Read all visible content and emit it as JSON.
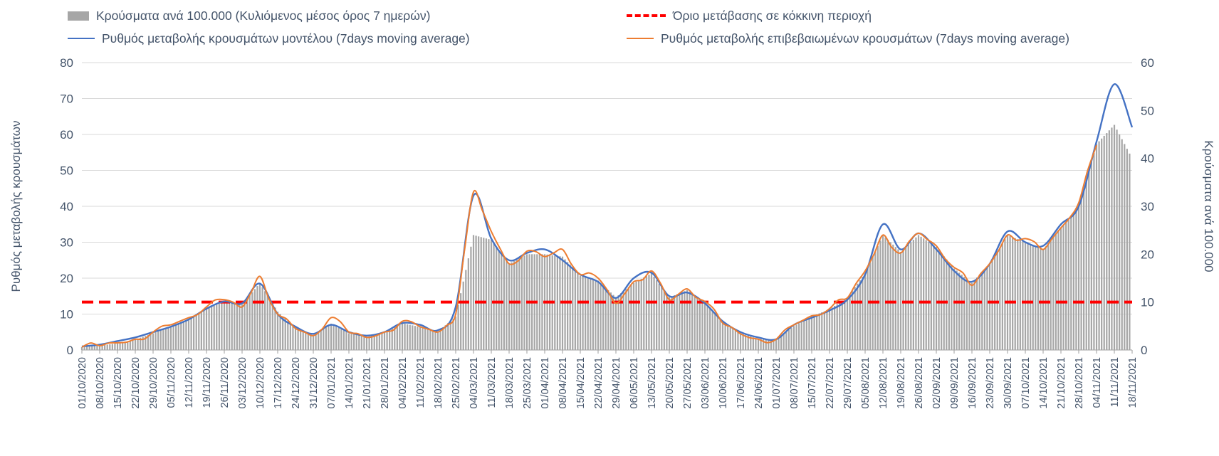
{
  "chart_data": {
    "type": "bar",
    "x_labels": [
      "01/10/2020",
      "08/10/2020",
      "15/10/2020",
      "22/10/2020",
      "29/10/2020",
      "05/11/2020",
      "12/11/2020",
      "19/11/2020",
      "26/11/2020",
      "03/12/2020",
      "10/12/2020",
      "17/12/2020",
      "24/12/2020",
      "31/12/2020",
      "07/01/2021",
      "14/01/2021",
      "21/01/2021",
      "28/01/2021",
      "04/02/2021",
      "11/02/2021",
      "18/02/2021",
      "25/02/2021",
      "04/03/2021",
      "11/03/2021",
      "18/03/2021",
      "25/03/2021",
      "01/04/2021",
      "08/04/2021",
      "15/04/2021",
      "22/04/2021",
      "29/04/2021",
      "06/05/2021",
      "13/05/2021",
      "20/05/2021",
      "27/05/2021",
      "03/06/2021",
      "10/06/2021",
      "17/06/2021",
      "24/06/2021",
      "01/07/2021",
      "08/07/2021",
      "15/07/2021",
      "22/07/2021",
      "29/07/2021",
      "05/08/2021",
      "12/08/2021",
      "19/08/2021",
      "26/08/2021",
      "02/09/2021",
      "09/09/2021",
      "16/09/2021",
      "23/09/2021",
      "30/09/2021",
      "07/10/2021",
      "14/10/2021",
      "21/10/2021",
      "28/10/2021",
      "04/11/2021",
      "11/11/2021",
      "18/11/2021"
    ],
    "left_axis": {
      "title": "Ρυθμός μεταβολής κρουσμάτων",
      "min": 0,
      "max": 80,
      "step": 10
    },
    "right_axis": {
      "title": "Κρούσματα ανά 100.000",
      "min": 0,
      "max": 60,
      "step": 10
    },
    "series": [
      {
        "name": "Κρούσματα ανά 100.000 (Κυλιόμενος μέσος όρος 7 ημερών)",
        "type": "bar",
        "axis": "right",
        "color": "#a6a6a6",
        "values": [
          0.6,
          0.9,
          1.4,
          2.2,
          3.5,
          5,
          6.5,
          8.7,
          10,
          9.5,
          14,
          8,
          4.5,
          3,
          5.5,
          3.5,
          2.7,
          3.6,
          5.6,
          4.8,
          3.8,
          7,
          24,
          23,
          18,
          20,
          20,
          19.5,
          15.5,
          14.5,
          11,
          14,
          16,
          11,
          12.5,
          10,
          5.8,
          3.5,
          2.3,
          2.2,
          5,
          7,
          8.5,
          11,
          16,
          24,
          20.5,
          24,
          21.5,
          17,
          14,
          18,
          24,
          22.5,
          21,
          25.5,
          30,
          43,
          47,
          40
        ]
      },
      {
        "name": "Όριο μετάβασης σε κόκκινη περιοχή",
        "type": "threshold",
        "axis": "right",
        "color": "#ff0000",
        "value": 10
      },
      {
        "name": "Ρυθμός μεταβολής κρουσμάτων μοντέλου (7days moving average)",
        "type": "line",
        "axis": "left",
        "color": "#4472c4",
        "values": [
          1,
          1.5,
          2.5,
          3.5,
          5,
          6.5,
          8.5,
          11.5,
          13.5,
          13,
          18.5,
          10,
          6.5,
          4.5,
          7,
          5,
          4,
          5,
          7.5,
          7,
          5.5,
          12,
          43,
          31,
          25,
          27,
          28,
          25,
          21,
          19,
          14.5,
          20,
          21.5,
          15,
          16,
          13,
          8,
          5,
          3.5,
          3,
          7,
          9,
          11,
          14,
          21,
          35,
          28,
          32.5,
          28,
          22,
          19,
          24,
          33,
          30,
          29,
          35,
          40,
          58,
          74,
          62
        ]
      },
      {
        "name": "Ρυθμός μεταβολής επιβεβαιωμένων κρουσμάτων (7days moving average)",
        "type": "line",
        "axis": "left",
        "color": "#ed7d31",
        "values": [
          0.8,
          1.2,
          2,
          3,
          5,
          7,
          9,
          12,
          14,
          12,
          20.5,
          10,
          6,
          4,
          9,
          5,
          3.5,
          5,
          8,
          6.5,
          5,
          10,
          44,
          33,
          24,
          27.5,
          26,
          28,
          21,
          20,
          13,
          19,
          22,
          14,
          17,
          13.5,
          7.5,
          4.5,
          3,
          3,
          7,
          9.5,
          11.5,
          14.5,
          22,
          32,
          27,
          32.5,
          29,
          23,
          18,
          24,
          32,
          31,
          28,
          34,
          41,
          57,
          null,
          null
        ]
      }
    ]
  }
}
